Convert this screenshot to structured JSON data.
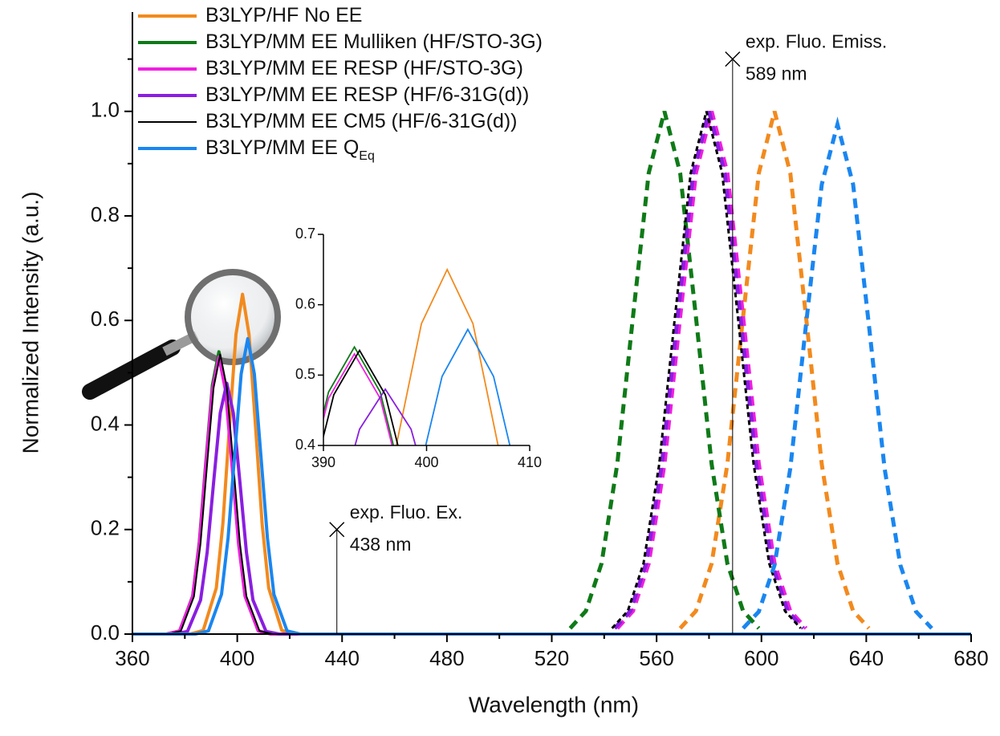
{
  "chart_data": {
    "type": "line",
    "xlabel": "Wavelength (nm)",
    "ylabel": "Normalized Intensity (a.u.)",
    "xlim": [
      360,
      680
    ],
    "xticks": [
      360,
      400,
      440,
      480,
      520,
      560,
      600,
      640,
      680
    ],
    "ylim": [
      0,
      1.19
    ],
    "yticks": [
      {
        "value": 0,
        "label": "0.0"
      },
      0.2,
      0.4,
      0.6,
      0.8,
      {
        "value": 1,
        "label": "1.0"
      }
    ],
    "series": [
      {
        "name": "B3LYP/HF No EE",
        "color": "#f28a1e",
        "line_width": 4,
        "x": [
          360,
          382,
          387,
          392,
          394.5,
          397,
          399.5,
          402,
          404.5,
          407,
          409.5,
          412,
          417,
          422,
          680
        ],
        "values": [
          0,
          0,
          0.007,
          0.088,
          0.211,
          0.395,
          0.573,
          0.65,
          0.573,
          0.395,
          0.211,
          0.088,
          0.007,
          0,
          0
        ],
        "emission_x": [
          569,
          575,
          581,
          587,
          593,
          599,
          605,
          611,
          617,
          623,
          629,
          635,
          641
        ],
        "emission_values": [
          0.011,
          0.044,
          0.135,
          0.325,
          0.607,
          0.882,
          1,
          0.882,
          0.607,
          0.325,
          0.135,
          0.044,
          0.011
        ]
      },
      {
        "name": "B3LYP/MM EE Mulliken (HF/STO-3G)",
        "color": "#0f7a18",
        "line_width": 4,
        "x": [
          360,
          373,
          378,
          383,
          385.5,
          388,
          390.5,
          393,
          395.5,
          398,
          400.5,
          403,
          408,
          413,
          680
        ],
        "values": [
          0,
          0,
          0.006,
          0.073,
          0.176,
          0.328,
          0.476,
          0.54,
          0.476,
          0.328,
          0.176,
          0.073,
          0.006,
          0,
          0
        ],
        "emission_x": [
          527,
          533,
          539,
          545,
          551,
          557,
          563,
          569,
          575,
          581,
          587,
          593,
          599
        ],
        "emission_values": [
          0.011,
          0.044,
          0.135,
          0.325,
          0.607,
          0.882,
          1,
          0.882,
          0.607,
          0.325,
          0.135,
          0.044,
          0.011
        ]
      },
      {
        "name": "B3LYP/MM EE RESP (HF/STO-3G)",
        "color": "#f01ee0",
        "line_width": 4,
        "x": [
          360,
          373,
          378,
          383,
          385.5,
          388,
          390.5,
          393,
          395.5,
          398,
          400.5,
          403,
          408,
          413,
          680
        ],
        "values": [
          0,
          0,
          0.006,
          0.072,
          0.172,
          0.322,
          0.467,
          0.53,
          0.467,
          0.322,
          0.172,
          0.072,
          0.006,
          0,
          0
        ],
        "emission_x": [
          545,
          551,
          557,
          563,
          569,
          575,
          581,
          587,
          593,
          599,
          605,
          611,
          617
        ],
        "emission_values": [
          0.011,
          0.044,
          0.135,
          0.325,
          0.607,
          0.882,
          1,
          0.882,
          0.607,
          0.325,
          0.135,
          0.044,
          0.011
        ]
      },
      {
        "name": "B3LYP/MM EE RESP (HF/6-31G(d))",
        "color": "#8a1ee0",
        "line_width": 4,
        "x": [
          360,
          376,
          381,
          386,
          388.5,
          391,
          393.5,
          396,
          398.5,
          401,
          403.5,
          406,
          411,
          416,
          680
        ],
        "values": [
          0,
          0,
          0.005,
          0.065,
          0.156,
          0.291,
          0.423,
          0.48,
          0.423,
          0.291,
          0.156,
          0.065,
          0.005,
          0,
          0
        ],
        "emission_x": [
          544,
          550,
          556,
          562,
          568,
          574,
          580,
          586,
          592,
          598,
          604,
          610,
          616
        ],
        "emission_values": [
          0.011,
          0.044,
          0.135,
          0.325,
          0.607,
          0.882,
          1,
          0.882,
          0.607,
          0.325,
          0.135,
          0.044,
          0.011
        ]
      },
      {
        "name": "B3LYP/MM EE CM5 (HF/6-31G(d))",
        "color": "#000000",
        "line_width": 2,
        "x": [
          360,
          373.5,
          378.5,
          383.5,
          386,
          388.5,
          391,
          393.5,
          396,
          398.5,
          401,
          403.5,
          408.5,
          413.5,
          680
        ],
        "values": [
          0,
          0,
          0.006,
          0.072,
          0.174,
          0.325,
          0.472,
          0.535,
          0.472,
          0.325,
          0.174,
          0.072,
          0.006,
          0,
          0
        ],
        "emission_x": [
          543,
          549,
          555,
          561,
          567,
          573,
          579,
          585,
          591,
          597,
          603,
          609,
          615
        ],
        "emission_values": [
          0.011,
          0.044,
          0.135,
          0.325,
          0.607,
          0.882,
          1,
          0.882,
          0.607,
          0.325,
          0.135,
          0.044,
          0.011
        ]
      },
      {
        "name": "B3LYP/MM EE Q",
        "subscript": "Eq",
        "color": "#1a86f0",
        "line_width": 4,
        "x": [
          360,
          384,
          389,
          394,
          396.5,
          399,
          401.5,
          404,
          406.5,
          409,
          411.5,
          414,
          419,
          424,
          680
        ],
        "values": [
          0,
          0,
          0.006,
          0.076,
          0.184,
          0.343,
          0.498,
          0.565,
          0.498,
          0.343,
          0.184,
          0.076,
          0.006,
          0,
          0
        ],
        "emission_x": [
          593,
          599,
          605,
          611,
          617,
          623,
          629,
          635,
          641,
          647,
          653,
          659,
          665
        ],
        "emission_values": [
          0.011,
          0.043,
          0.132,
          0.317,
          0.592,
          0.86,
          0.975,
          0.86,
          0.592,
          0.317,
          0.132,
          0.043,
          0.011
        ]
      }
    ],
    "annotations": [
      {
        "x": 438,
        "y": 0.2,
        "lines": [
          "exp. Fluo. Ex.",
          "438 nm"
        ]
      },
      {
        "x": 589,
        "y": 1.1,
        "lines": [
          "exp. Fluo. Emiss.",
          "589 nm"
        ]
      }
    ],
    "inset": {
      "xlim": [
        390,
        410
      ],
      "xticks": [
        390,
        400,
        410
      ],
      "ylim": [
        0.4,
        0.7
      ],
      "yticks": [
        0.4,
        0.5,
        0.6,
        0.7
      ]
    }
  }
}
